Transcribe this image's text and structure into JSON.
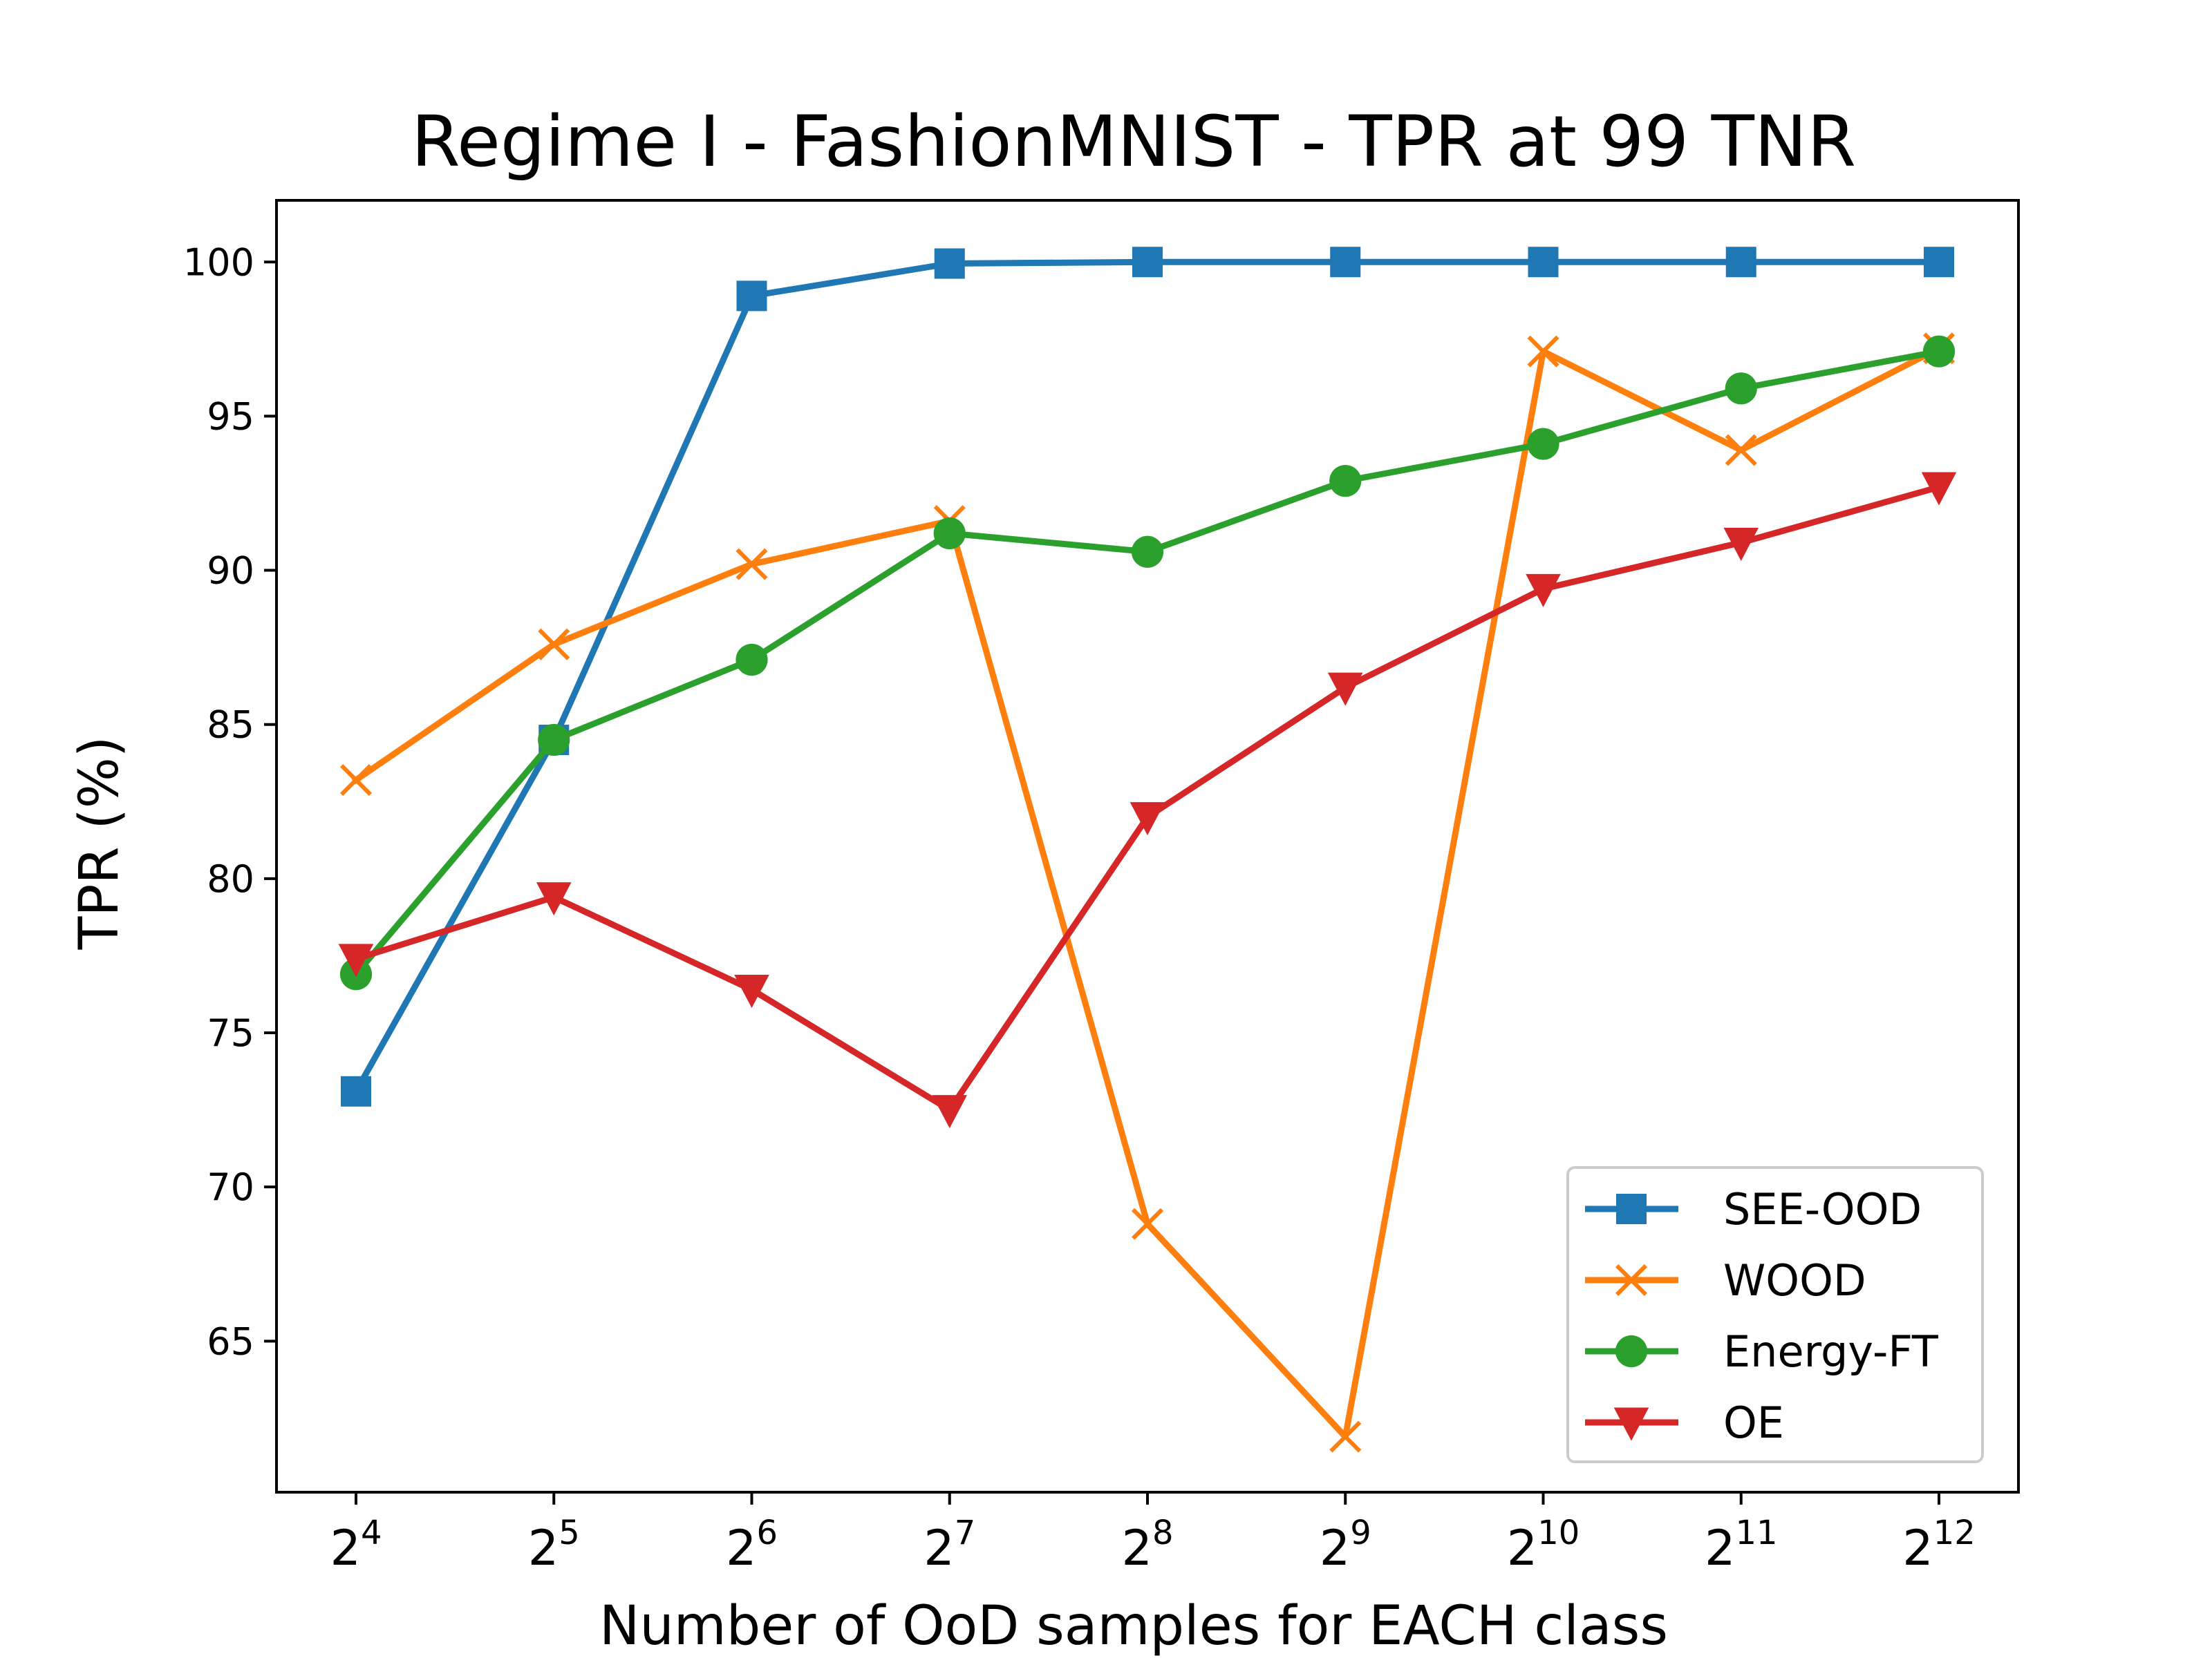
{
  "chart_data": {
    "type": "line",
    "title": "Regime I - FashionMNIST - TPR at 99 TNR",
    "xlabel": "Number of OoD samples for EACH class",
    "ylabel": "TPR (%)",
    "x_ticks": [
      {
        "base": "2",
        "exp": "4"
      },
      {
        "base": "2",
        "exp": "5"
      },
      {
        "base": "2",
        "exp": "6"
      },
      {
        "base": "2",
        "exp": "7"
      },
      {
        "base": "2",
        "exp": "8"
      },
      {
        "base": "2",
        "exp": "9"
      },
      {
        "base": "2",
        "exp": "10"
      },
      {
        "base": "2",
        "exp": "11"
      },
      {
        "base": "2",
        "exp": "12"
      }
    ],
    "x": [
      16,
      32,
      64,
      128,
      256,
      512,
      1024,
      2048,
      4096
    ],
    "x_scale": "log2",
    "ylim": [
      60.1,
      102
    ],
    "y_ticks": [
      65,
      70,
      75,
      80,
      85,
      90,
      95,
      100
    ],
    "grid": false,
    "legend_position": "lower right",
    "series": [
      {
        "name": "SEE-OOD",
        "color": "#1f77b4",
        "marker": "square",
        "values": [
          73.1,
          84.5,
          98.9,
          99.95,
          100,
          100,
          100,
          100,
          100
        ]
      },
      {
        "name": "WOOD",
        "color": "#ff7f0e",
        "marker": "x",
        "values": [
          83.2,
          87.6,
          90.2,
          91.6,
          68.8,
          61.9,
          97.1,
          93.9,
          97.2
        ]
      },
      {
        "name": "Energy-FT",
        "color": "#2ca02c",
        "marker": "circle",
        "values": [
          76.9,
          84.5,
          87.1,
          91.2,
          90.6,
          92.9,
          94.1,
          95.9,
          97.1
        ]
      },
      {
        "name": "OE",
        "color": "#d62728",
        "marker": "triangle-down",
        "values": [
          77.4,
          79.4,
          76.4,
          72.5,
          82.0,
          86.2,
          89.4,
          90.9,
          92.7
        ]
      }
    ]
  }
}
